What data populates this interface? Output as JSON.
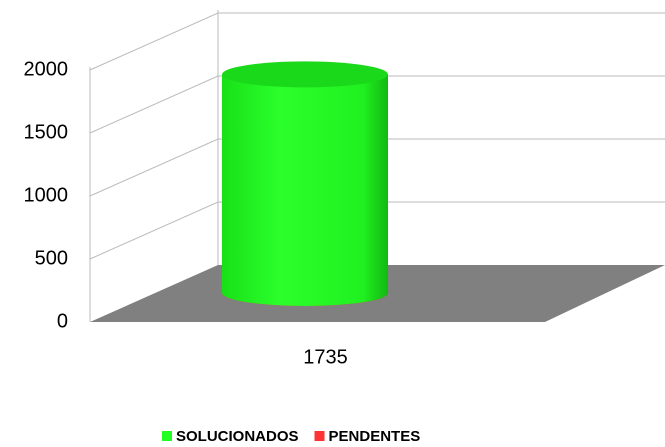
{
  "chart_data": {
    "type": "bar3d",
    "categories": [
      "1735"
    ],
    "series": [
      {
        "name": "SOLUCIONADOS",
        "color": "#22ff22",
        "values": [
          1735
        ]
      },
      {
        "name": "PENDENTES",
        "color": "#ff3333",
        "values": [
          0
        ]
      }
    ],
    "ylim": [
      0,
      2000
    ],
    "yticks": [
      0,
      500,
      1000,
      1500,
      2000
    ],
    "grid": true,
    "legend": "bottom"
  }
}
